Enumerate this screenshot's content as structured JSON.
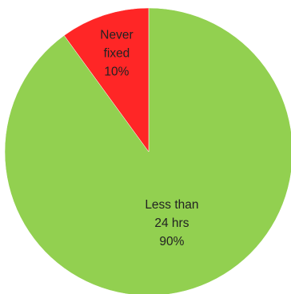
{
  "chart_data": {
    "type": "pie",
    "title": "",
    "slices": [
      {
        "label_lines": [
          "Less than",
          "24 hrs",
          "90%"
        ],
        "value": 90,
        "color": "#92d050"
      },
      {
        "label_lines": [
          "Never",
          "fixed",
          "10%"
        ],
        "value": 10,
        "color": "#ff2626"
      }
    ],
    "start_angle_deg": 0,
    "direction": "clockwise"
  }
}
